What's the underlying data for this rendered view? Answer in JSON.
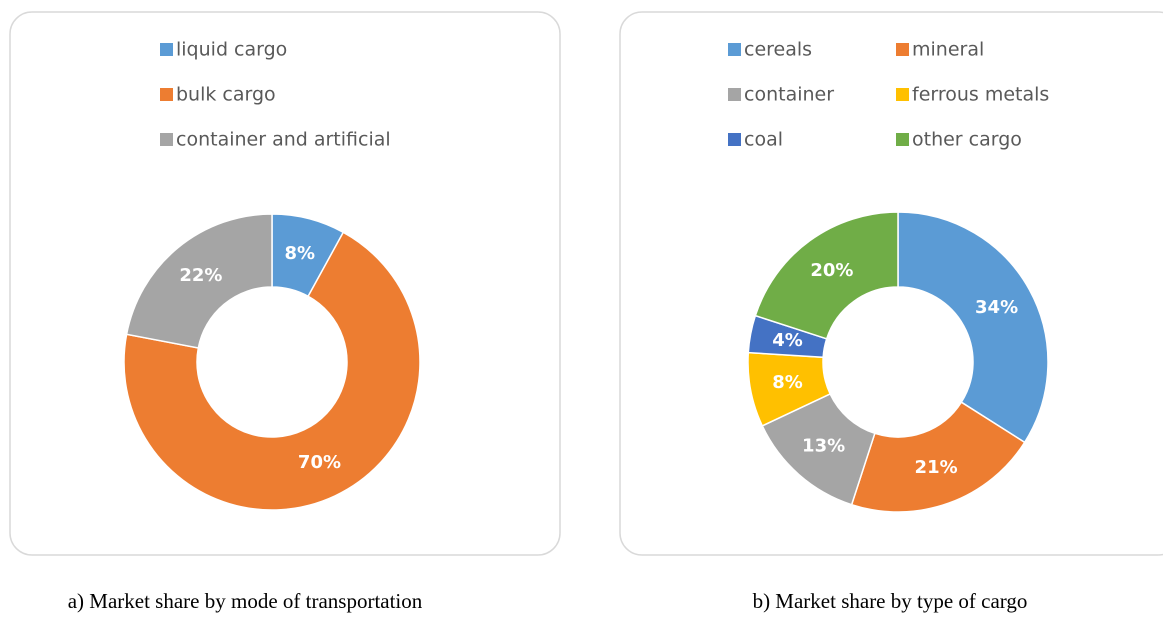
{
  "chart_data": [
    {
      "type": "donut",
      "caption": "a) Market share by mode of transportation",
      "labels": [
        "liquid cargo",
        "bulk cargo",
        "container and artificial"
      ],
      "values": [
        8,
        70,
        22
      ],
      "value_labels": [
        "8%",
        "70%",
        "22%"
      ],
      "colors": [
        "#5b9bd5",
        "#ed7d31",
        "#a5a5a5"
      ],
      "legend_columns": 1
    },
    {
      "type": "donut",
      "caption": "b) Market share by type of cargo",
      "labels": [
        "cereals",
        "mineral",
        "container",
        "ferrous metals",
        "coal",
        "other cargo"
      ],
      "values": [
        34,
        21,
        13,
        8,
        4,
        20
      ],
      "value_labels": [
        "34%",
        "21%",
        "13%",
        "8%",
        "4%",
        "20%"
      ],
      "colors": [
        "#5b9bd5",
        "#ed7d31",
        "#a5a5a5",
        "#ffc000",
        "#4472c4",
        "#70ad47"
      ],
      "legend_columns": 2
    }
  ]
}
